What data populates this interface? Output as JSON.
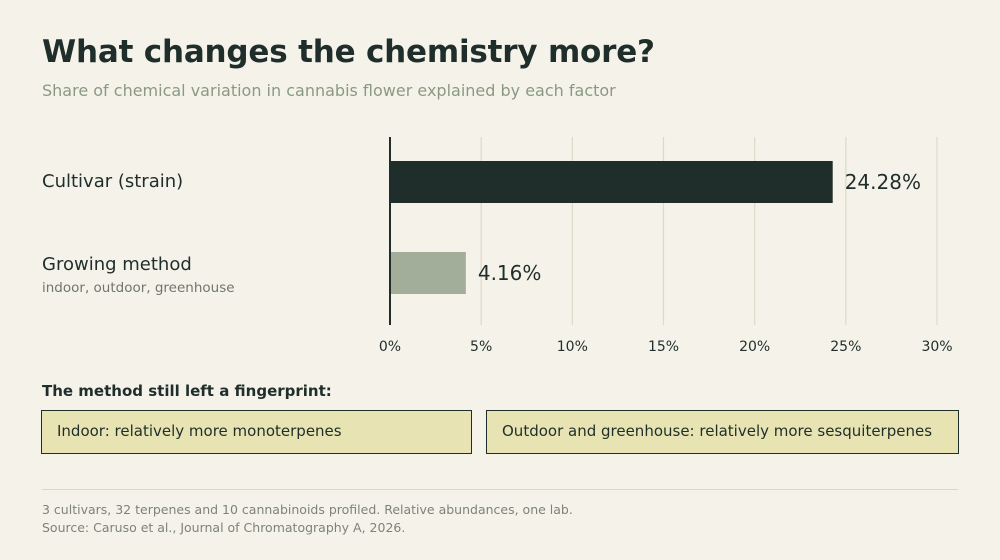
{
  "title": "What changes the chemistry more?",
  "subtitle": "Share of chemical variation in cannabis flower explained by each factor",
  "categories": [
    {
      "label": "Cultivar (strain)",
      "sublabel": ""
    },
    {
      "label": "Growing method",
      "sublabel": "indoor, outdoor, greenhouse"
    }
  ],
  "chart_data": {
    "type": "bar",
    "orientation": "horizontal",
    "title": "What changes the chemistry more?",
    "subtitle": "Share of chemical variation in cannabis flower explained by each factor",
    "categories": [
      "Cultivar (strain)",
      "Growing method"
    ],
    "values": [
      24.28,
      4.16
    ],
    "value_labels": [
      "24.28%",
      "4.16%"
    ],
    "colors": [
      "#1f2e2a",
      "#a3ae9a"
    ],
    "xlim": [
      0,
      30
    ],
    "xticks": [
      0,
      5,
      10,
      15,
      20,
      25,
      30
    ],
    "xtick_labels": [
      "0%",
      "5%",
      "10%",
      "15%",
      "20%",
      "25%",
      "30%"
    ],
    "grid": true,
    "xlabel": "",
    "ylabel": ""
  },
  "fingerprint": {
    "heading": "The method still left a fingerprint:",
    "boxes": [
      "Indoor: relatively more monoterpenes",
      "Outdoor and greenhouse: relatively more sesquiterpenes"
    ]
  },
  "footer": {
    "note": "3 cultivars, 32 terpenes and 10 cannabinoids profiled. Relative abundances, one lab.",
    "source": "Source: Caruso et al., Journal of Chromatography A, 2026."
  },
  "colors": {
    "background": "#f5f2ea",
    "primary": "#1f2e2a",
    "secondary_bar": "#a3ae9a",
    "callout_fill": "#e8e3b2",
    "grid": "#dedac8"
  }
}
